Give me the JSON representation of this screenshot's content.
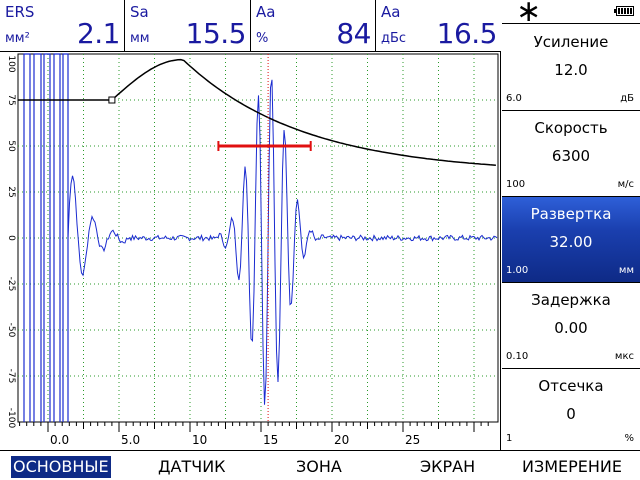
{
  "readouts": [
    {
      "name": "ERS",
      "unit": "мм²",
      "value": "2.1"
    },
    {
      "name": "Sa",
      "unit": "мм",
      "value": "15.5"
    },
    {
      "name": "Aa",
      "unit": "%",
      "value": "84"
    },
    {
      "name": "Aa",
      "unit": "дБс",
      "value": "16.5"
    }
  ],
  "status": {
    "star_symbol": "∗"
  },
  "params": [
    {
      "title": "Усиление",
      "value": "12.0",
      "step": "6.0",
      "unit": "дБ"
    },
    {
      "title": "Скорость",
      "value": "6300",
      "step": "100",
      "unit": "м/с"
    },
    {
      "title": "Развертка",
      "value": "32.00",
      "step": "1.00",
      "unit": "мм"
    },
    {
      "title": "Задержка",
      "value": "0.00",
      "step": "0.10",
      "unit": "мкс"
    },
    {
      "title": "Отсечка",
      "value": "0",
      "step": "1",
      "unit": "%"
    }
  ],
  "active_param": "Развертка",
  "scan": {
    "y_ticks": [
      "100",
      "75",
      "50",
      "25",
      "0",
      "-25",
      "-50",
      "-75",
      "-100"
    ],
    "x_ticks": [
      "0.0",
      "5.0",
      "10",
      "15",
      "20",
      "25"
    ],
    "gate_level_pct": 50,
    "gate_start_mm": 12,
    "gate_end_mm": 18.5,
    "marker_mm": 15.5,
    "colors": {
      "signal": "#1a2bd0",
      "gate": "#e01010",
      "dac": "#000000",
      "grid": "#2a9a2a"
    }
  },
  "menu": [
    {
      "label": "ОСНОВНЫЕ",
      "active": true
    },
    {
      "label": "ДАТЧИК",
      "active": false
    },
    {
      "label": "ЗОНА",
      "active": false
    },
    {
      "label": "ЭКРАН",
      "active": false
    },
    {
      "label": "ИЗМЕРЕНИЕ",
      "active": false
    }
  ]
}
